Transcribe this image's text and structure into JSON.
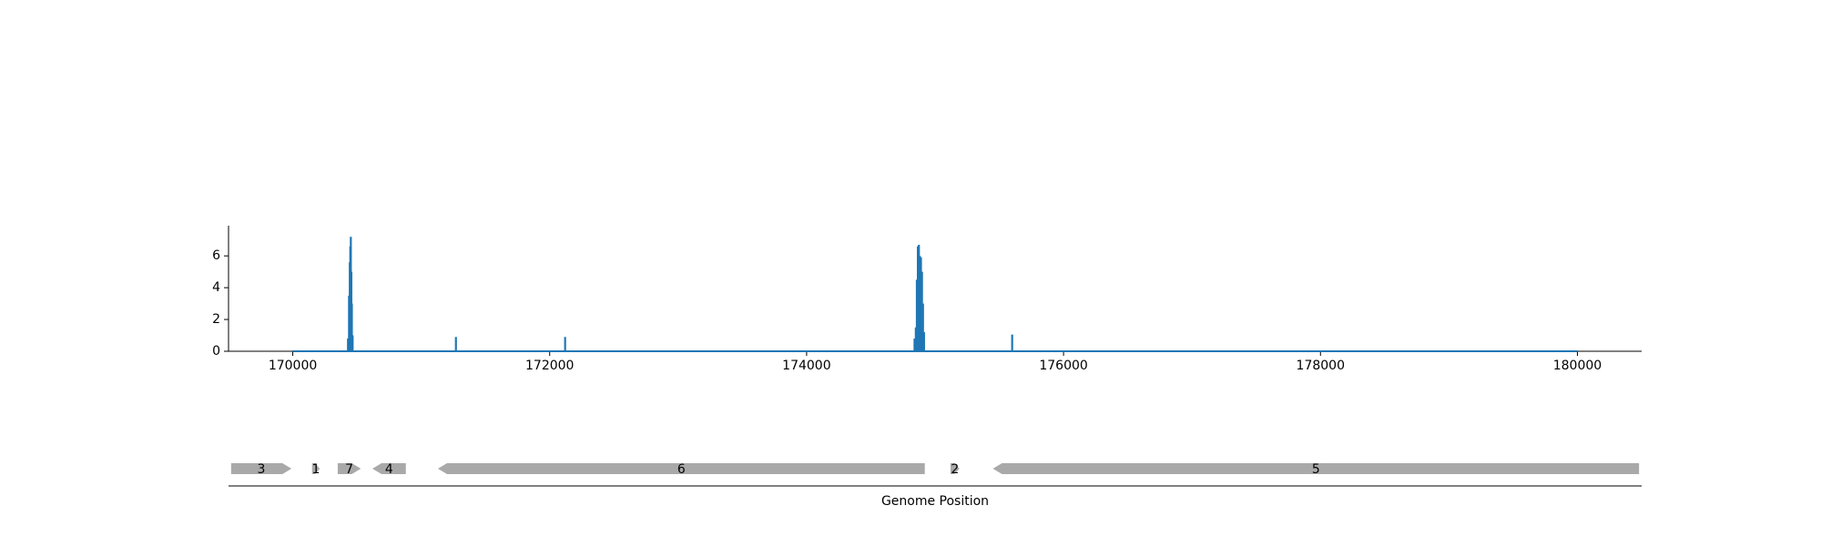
{
  "chart_data": {
    "type": "line",
    "xlabel": "Genome Position",
    "ylabel": "",
    "title": "",
    "xlim": [
      169500,
      180500
    ],
    "ylim": [
      0,
      7.9
    ],
    "x_ticks": [
      170000,
      172000,
      174000,
      176000,
      178000,
      180000
    ],
    "y_ticks": [
      0,
      2,
      4,
      6
    ],
    "line_color": "#1f77b4",
    "gene_color": "#a9a9a9",
    "coverage_range": [
      170000,
      180000
    ],
    "peaks": [
      {
        "x": 170430,
        "y": 0.8
      },
      {
        "x": 170438,
        "y": 3.5
      },
      {
        "x": 170444,
        "y": 5.6
      },
      {
        "x": 170448,
        "y": 6.6
      },
      {
        "x": 170452,
        "y": 7.2
      },
      {
        "x": 170456,
        "y": 5.0
      },
      {
        "x": 170460,
        "y": 3.0
      },
      {
        "x": 170466,
        "y": 1.0
      },
      {
        "x": 171270,
        "y": 0.9
      },
      {
        "x": 172120,
        "y": 0.9
      },
      {
        "x": 174840,
        "y": 0.8
      },
      {
        "x": 174850,
        "y": 1.5
      },
      {
        "x": 174858,
        "y": 4.5
      },
      {
        "x": 174866,
        "y": 6.6
      },
      {
        "x": 174874,
        "y": 6.7
      },
      {
        "x": 174882,
        "y": 6.0
      },
      {
        "x": 174890,
        "y": 5.9
      },
      {
        "x": 174898,
        "y": 5.0
      },
      {
        "x": 174906,
        "y": 3.0
      },
      {
        "x": 174914,
        "y": 1.2
      },
      {
        "x": 175600,
        "y": 1.05
      }
    ],
    "genes": [
      {
        "label": "3",
        "start": 169520,
        "end": 169990,
        "strand": "+"
      },
      {
        "label": "1",
        "start": 170150,
        "end": 170210,
        "strand": "+"
      },
      {
        "label": "7",
        "start": 170350,
        "end": 170530,
        "strand": "+"
      },
      {
        "label": "4",
        "start": 170620,
        "end": 170880,
        "strand": "-"
      },
      {
        "label": "6",
        "start": 171130,
        "end": 174920,
        "strand": "-"
      },
      {
        "label": "2",
        "start": 175120,
        "end": 175190,
        "strand": "+"
      },
      {
        "label": "5",
        "start": 175450,
        "end": 180480,
        "strand": "-"
      }
    ]
  }
}
